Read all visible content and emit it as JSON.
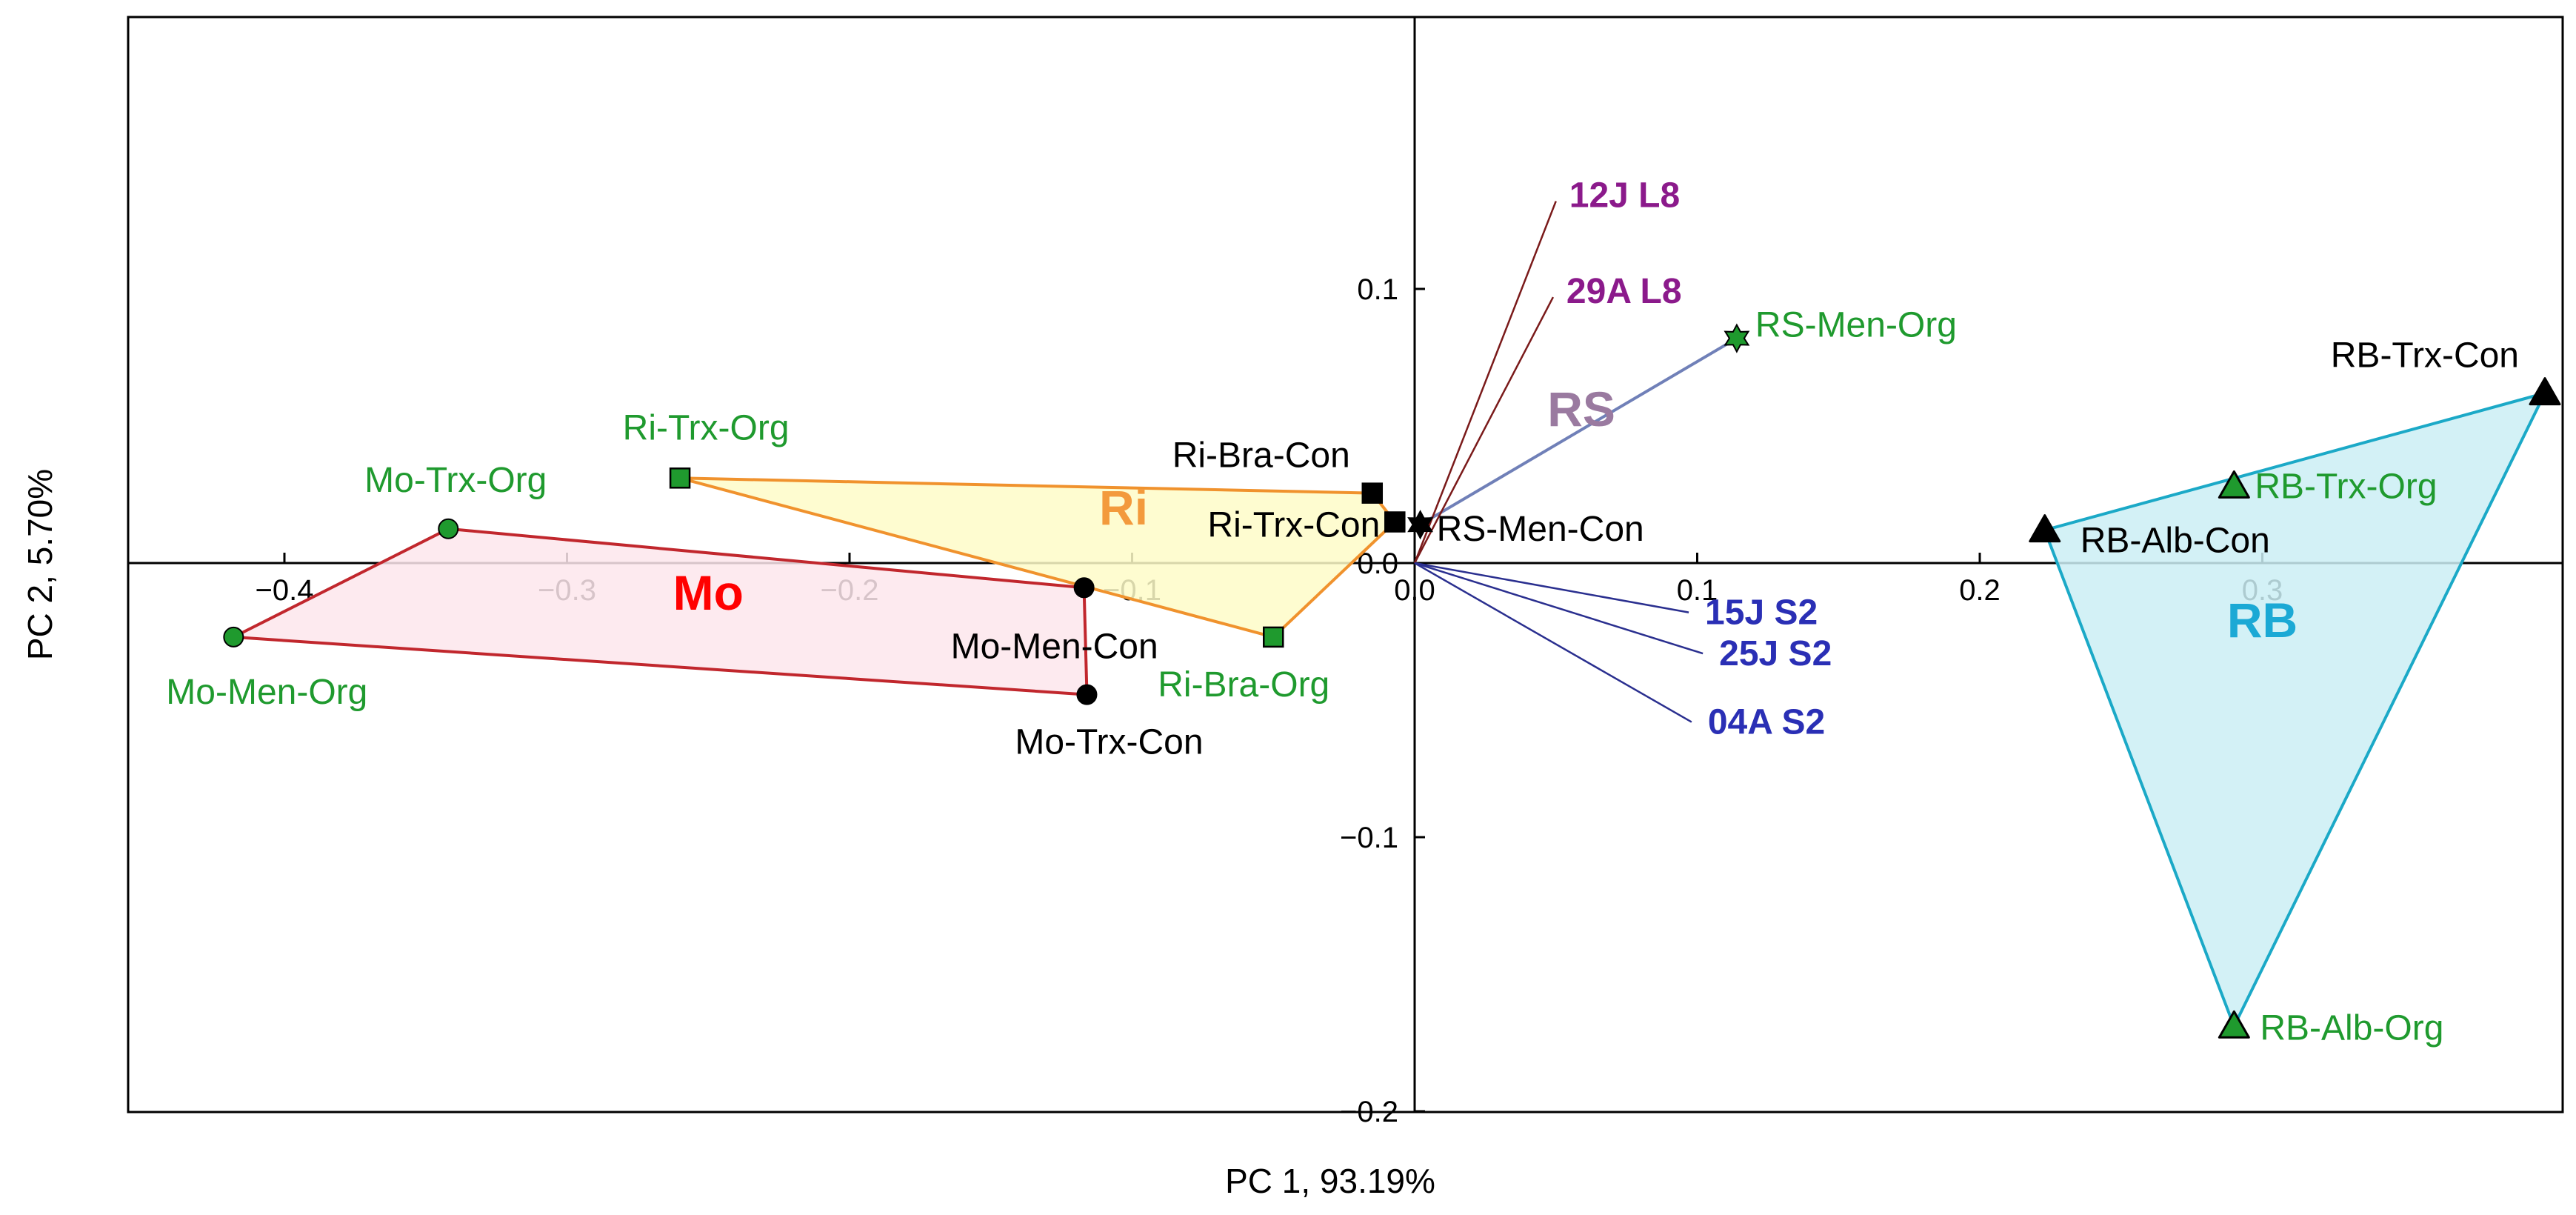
{
  "chart_data": {
    "type": "scatter",
    "title": "",
    "xlabel": "PC 1, 93.19%",
    "ylabel": "PC 2, 5.70%",
    "xlim": [
      -0.46,
      0.41
    ],
    "ylim": [
      -0.2,
      0.2
    ],
    "x_ticks": [
      {
        "value": -0.4,
        "label": "−0.4"
      },
      {
        "value": -0.3,
        "label": "−0.3"
      },
      {
        "value": -0.2,
        "label": "−0.2"
      },
      {
        "value": -0.1,
        "label": "−0.1"
      },
      {
        "value": 0.0,
        "label": "0.0"
      },
      {
        "value": 0.1,
        "label": "0.1"
      },
      {
        "value": 0.2,
        "label": "0.2"
      },
      {
        "value": 0.3,
        "label": "0.3"
      }
    ],
    "y_ticks": [
      {
        "value": 0.1,
        "label": "0.1"
      },
      {
        "value": 0.0,
        "label": "0.0"
      },
      {
        "value": -0.1,
        "label": "−0.1"
      },
      {
        "value": -0.2,
        "label": "−0.2"
      }
    ],
    "groups": [
      {
        "name": "Mo",
        "color": "#c1272d",
        "fill": "#fde6ec",
        "label_color": "#ff0000",
        "label_x": -0.25,
        "label_y": -0.017,
        "points": [
          {
            "label": "Mo-Men-Org",
            "x": -0.418,
            "y": -0.027,
            "marker": "circle",
            "color": "#1f9a2e",
            "label_color": "#1f9a2e"
          },
          {
            "label": "Mo-Trx-Org",
            "x": -0.342,
            "y": 0.0125,
            "marker": "circle",
            "color": "#1f9a2e",
            "label_color": "#1f9a2e"
          },
          {
            "label": "Mo-Men-Con",
            "x": -0.117,
            "y": -0.009,
            "marker": "circle",
            "color": "#000000",
            "label_color": "#000000"
          },
          {
            "label": "Mo-Trx-Con",
            "x": -0.116,
            "y": -0.048,
            "marker": "circle",
            "color": "#000000",
            "label_color": "#000000"
          }
        ]
      },
      {
        "name": "Ri",
        "color": "#f0922d",
        "fill": "#fefcc8",
        "label_color": "#f39a3c",
        "label_x": -0.103,
        "label_y": 0.014,
        "points": [
          {
            "label": "Ri-Trx-Org",
            "x": -0.26,
            "y": 0.031,
            "marker": "square",
            "color": "#1f9a2e",
            "label_color": "#1f9a2e"
          },
          {
            "label": "Ri-Bra-Con",
            "x": -0.015,
            "y": 0.0255,
            "marker": "square",
            "color": "#000000",
            "label_color": "#000000"
          },
          {
            "label": "Ri-Trx-Con",
            "x": -0.007,
            "y": 0.015,
            "marker": "square",
            "color": "#000000",
            "label_color": "#000000"
          },
          {
            "label": "Ri-Bra-Org",
            "x": -0.05,
            "y": -0.027,
            "marker": "square",
            "color": "#1f9a2e",
            "label_color": "#1f9a2e"
          }
        ]
      },
      {
        "name": "RS",
        "color": "#7080b8",
        "fill": "#d3dcf0",
        "label_color": "#9a7aa0",
        "label_x": 0.059,
        "label_y": 0.05,
        "points": [
          {
            "label": "RS-Men-Org",
            "x": 0.114,
            "y": 0.082,
            "marker": "star",
            "color": "#1f9a2e",
            "label_color": "#1f9a2e"
          },
          {
            "label": "RS-Men-Con",
            "x": 0.002,
            "y": 0.014,
            "marker": "star",
            "color": "#000000",
            "label_color": "#000000"
          }
        ]
      },
      {
        "name": "RB",
        "color": "#1ba9c7",
        "fill": "#cbeef5",
        "label_color": "#1ba9d5",
        "label_x": 0.3,
        "label_y": -0.027,
        "points": [
          {
            "label": "RB-Trx-Con",
            "x": 0.4,
            "y": 0.062,
            "marker": "triangle",
            "color": "#000000",
            "label_color": "#000000"
          },
          {
            "label": "RB-Trx-Org",
            "x": 0.29,
            "y": 0.028,
            "marker": "triangle",
            "color": "#1f9a2e",
            "label_color": "#1f9a2e"
          },
          {
            "label": "RB-Alb-Con",
            "x": 0.223,
            "y": 0.012,
            "marker": "triangle",
            "color": "#000000",
            "label_color": "#000000"
          },
          {
            "label": "RB-Alb-Org",
            "x": 0.29,
            "y": -0.169,
            "marker": "triangle",
            "color": "#1f9a2e",
            "label_color": "#1f9a2e"
          }
        ]
      }
    ],
    "vectors": [
      {
        "label": "12J L8",
        "x": 0.05,
        "y": 0.132,
        "color": "#7a1a1a",
        "label_color": "#8b1a8b"
      },
      {
        "label": "29A L8",
        "x": 0.049,
        "y": 0.097,
        "color": "#7a1a1a",
        "label_color": "#8b1a8b"
      },
      {
        "label": "15J S2",
        "x": 0.097,
        "y": -0.018,
        "color": "#2a2f8f",
        "label_color": "#2a2fb5"
      },
      {
        "label": "25J S2",
        "x": 0.102,
        "y": -0.033,
        "color": "#2a2f8f",
        "label_color": "#2a2fb5"
      },
      {
        "label": "04A S2",
        "x": 0.098,
        "y": -0.058,
        "color": "#2a2f8f",
        "label_color": "#2a2fb5"
      }
    ]
  }
}
